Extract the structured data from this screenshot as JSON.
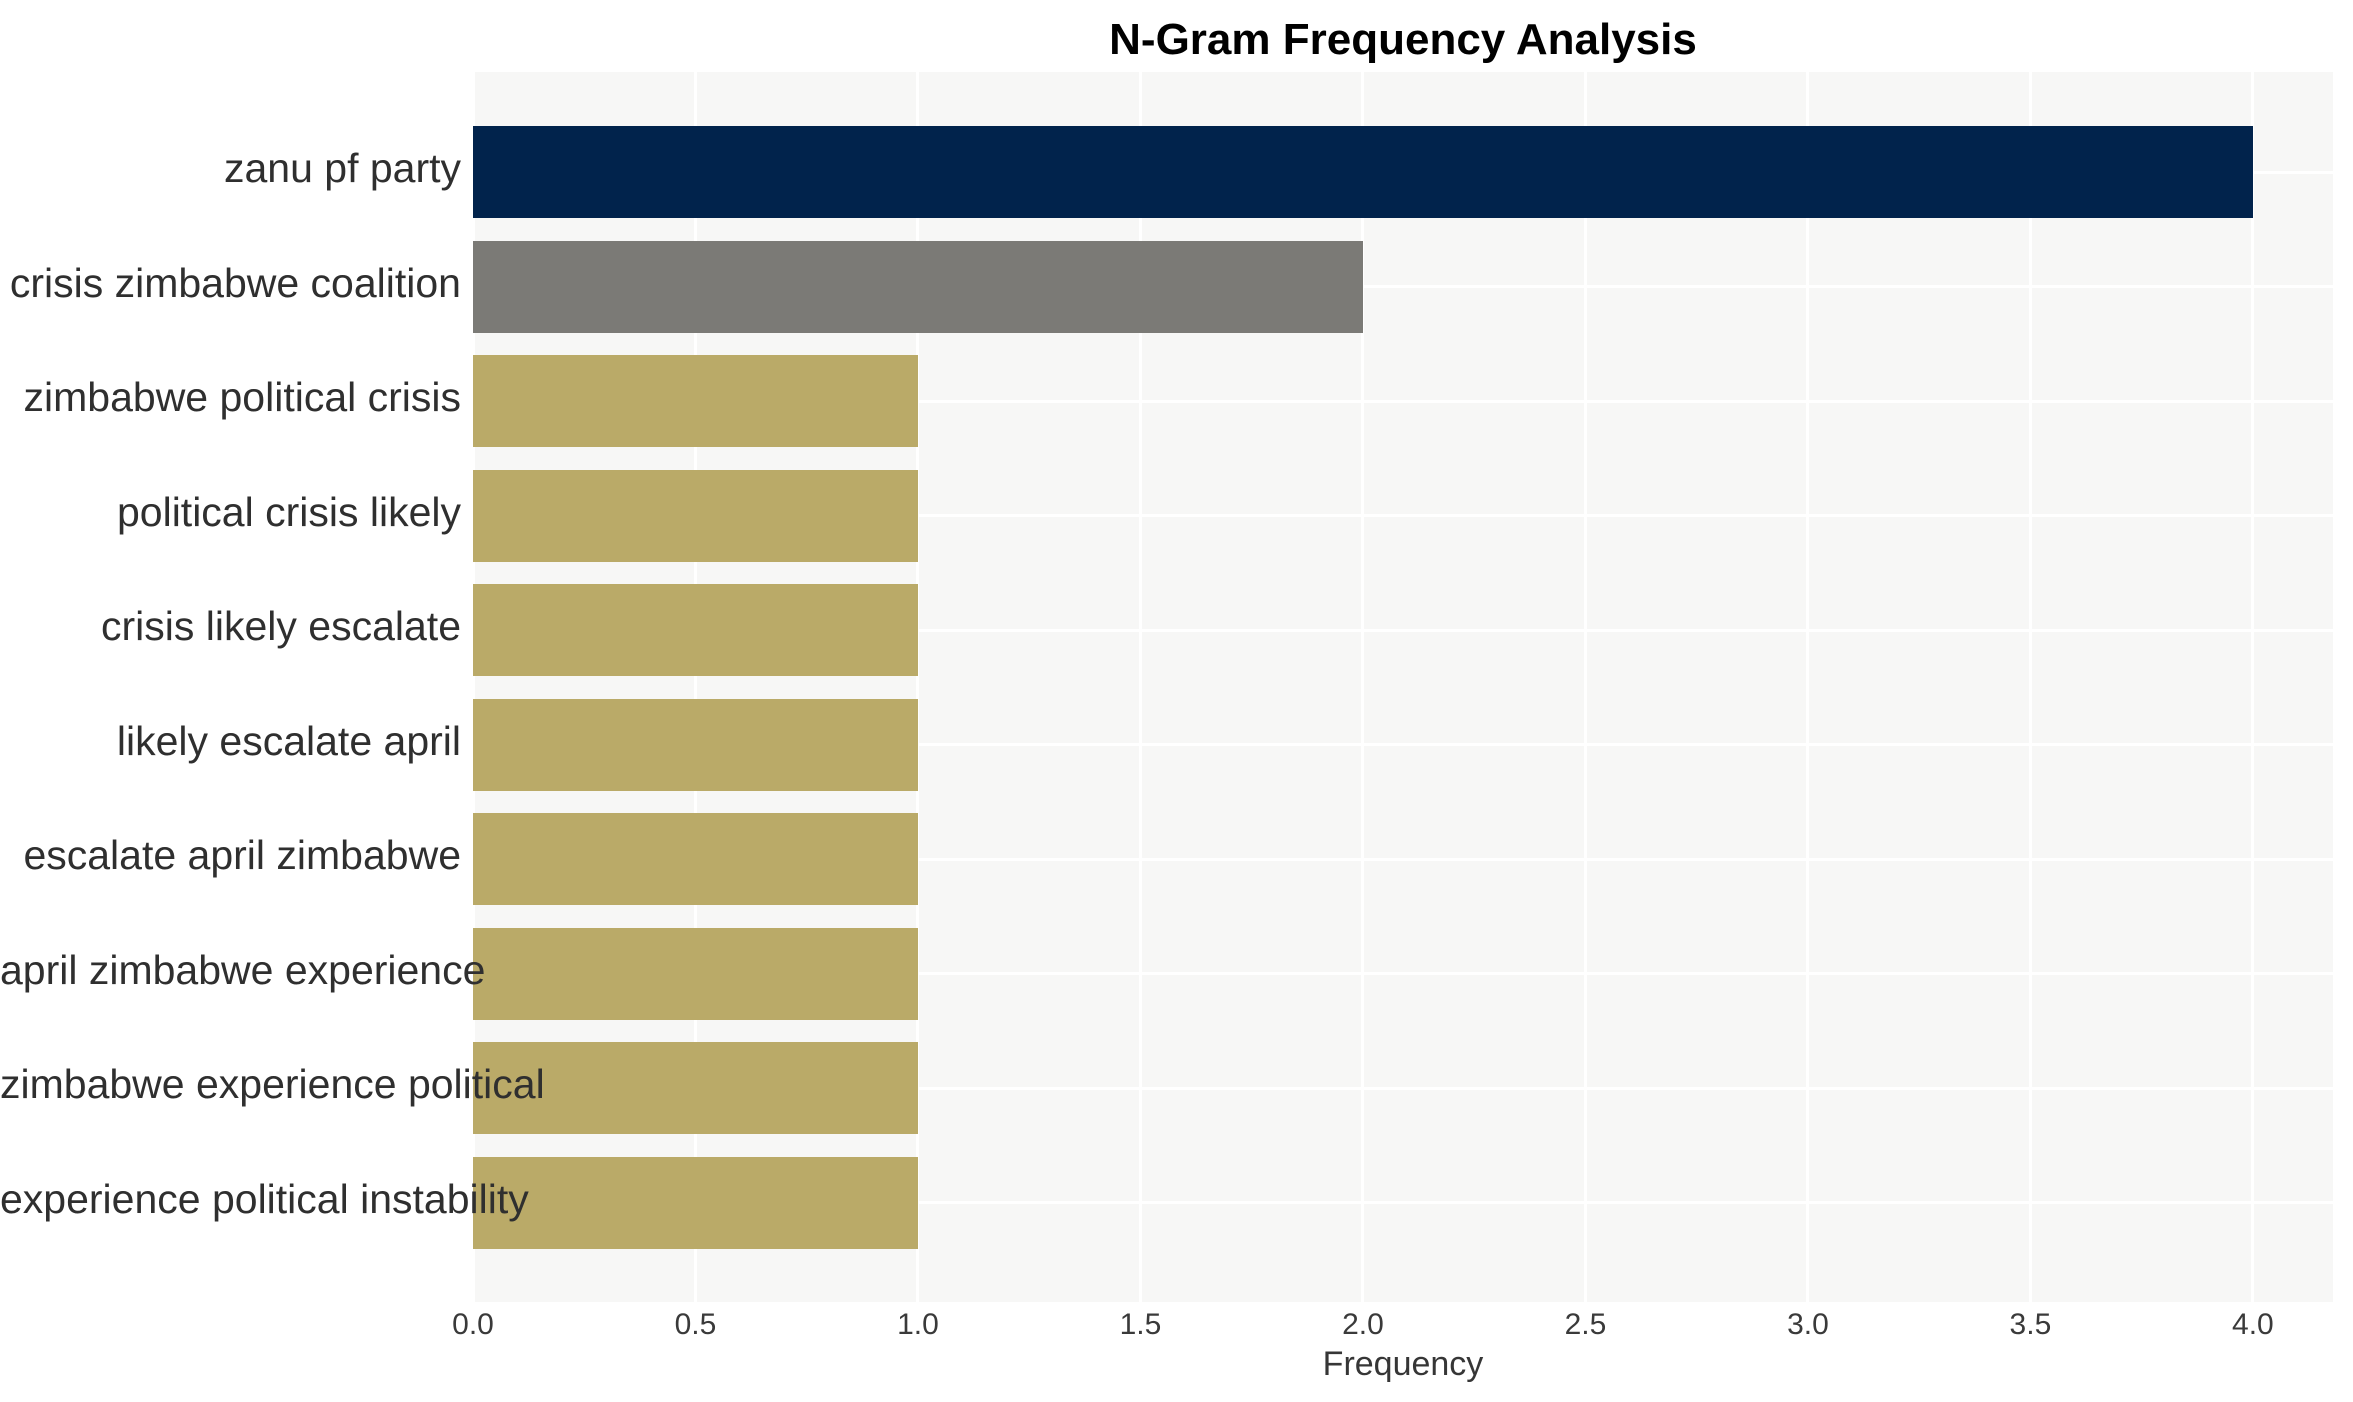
{
  "chart_data": {
    "type": "bar",
    "orientation": "horizontal",
    "title": "N-Gram Frequency Analysis",
    "xlabel": "Frequency",
    "ylabel": "",
    "categories": [
      "zanu pf party",
      "crisis zimbabwe coalition",
      "zimbabwe political crisis",
      "political crisis likely",
      "crisis likely escalate",
      "likely escalate april",
      "escalate april zimbabwe",
      "april zimbabwe experience",
      "zimbabwe experience political",
      "experience political instability"
    ],
    "values": [
      4,
      2,
      1,
      1,
      1,
      1,
      1,
      1,
      1,
      1
    ],
    "bar_colors": [
      "#01234c",
      "#7b7a76",
      "#baaa68",
      "#baaa68",
      "#baaa68",
      "#baaa68",
      "#baaa68",
      "#baaa68",
      "#baaa68",
      "#baaa68"
    ],
    "xlim": [
      0,
      4.18
    ],
    "xticks": [
      0,
      0.5,
      1,
      1.5,
      2,
      2.5,
      3,
      3.5,
      4
    ],
    "xtick_labels": [
      "0.0",
      "0.5",
      "1.0",
      "1.5",
      "2.0",
      "2.5",
      "3.0",
      "3.5",
      "4.0"
    ],
    "grid": true,
    "legend": false,
    "plot_background": "#f7f7f6",
    "grid_color": "#ffffff"
  }
}
